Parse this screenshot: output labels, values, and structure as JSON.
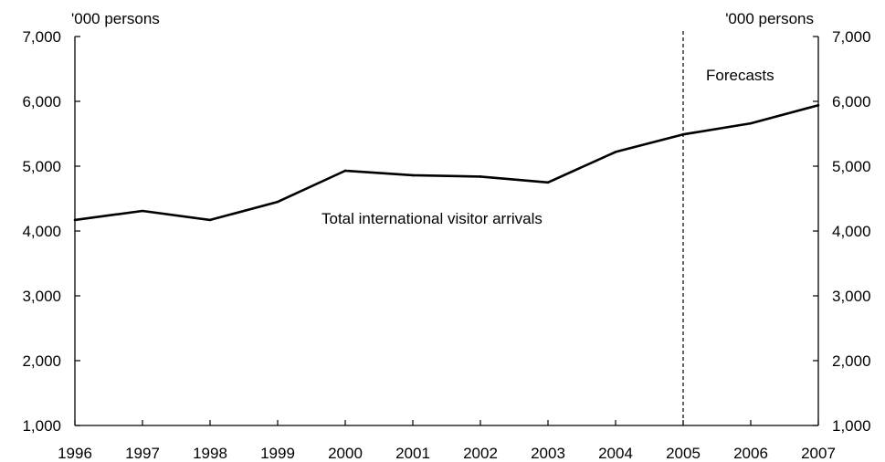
{
  "chart_data": {
    "type": "line",
    "x": [
      1996,
      1997,
      1998,
      1999,
      2000,
      2001,
      2002,
      2003,
      2004,
      2005,
      2006,
      2007
    ],
    "series": [
      {
        "values": [
          4170,
          4310,
          4170,
          4450,
          4930,
          4860,
          4840,
          4750,
          5220,
          5490,
          5660,
          5940
        ]
      }
    ],
    "xticks": [
      "1996",
      "1997",
      "1998",
      "1999",
      "2000",
      "2001",
      "2002",
      "2003",
      "2004",
      "2005",
      "2006",
      "2007"
    ],
    "yticks": [
      1000,
      2000,
      3000,
      4000,
      5000,
      6000,
      7000
    ],
    "ytick_labels": [
      "1,000",
      "2,000",
      "3,000",
      "4,000",
      "5,000",
      "6,000",
      "7,000"
    ],
    "ylim": [
      1000,
      7000
    ],
    "xlim": [
      1996,
      2007
    ],
    "ylabel_left": "'000 persons",
    "ylabel_right": "'000 persons",
    "forecast_start": 2005,
    "annotations": {
      "series_label": "Total international visitor arrivals",
      "forecast_label": "Forecasts"
    },
    "grid": false,
    "colors": {
      "line": "#000000",
      "axis": "#000000"
    }
  }
}
